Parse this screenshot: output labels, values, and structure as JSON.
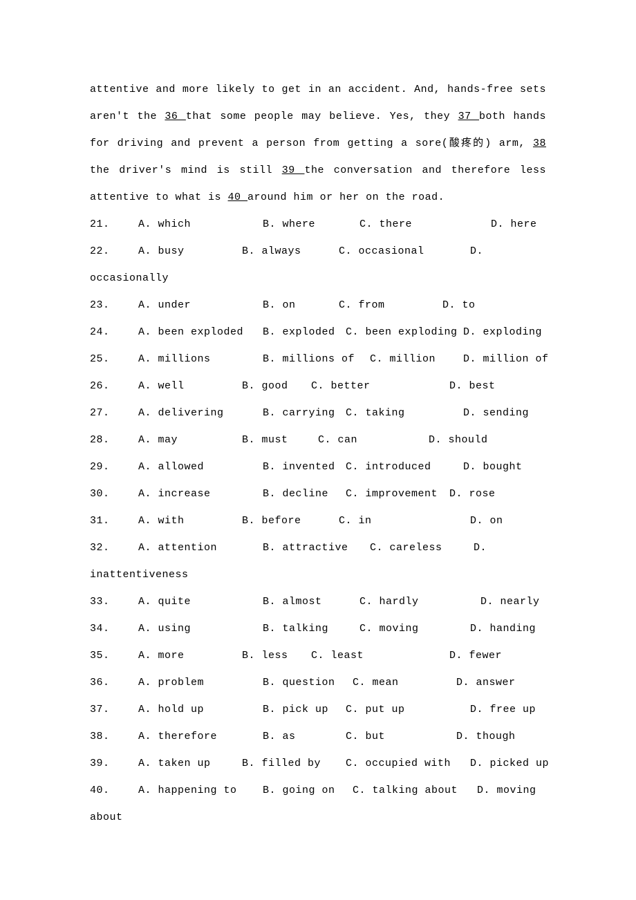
{
  "passage": {
    "pre36": "attentive and more likely to get in an accident. And, hands-free sets aren't the ",
    "blank36": "  36  ",
    "aft36": " that some people may believe. Yes, they ",
    "blank37": "  37  ",
    "aft37": " both hands for driving and prevent a person from getting a sore(酸疼的) arm, ",
    "blank38": "  38  ",
    "aft38": " the driver's mind is still ",
    "blank39": "  39  ",
    "aft39": " the conversation and therefore less attentive to what is ",
    "blank40": "  40  ",
    "aft40": " around him or her on the road."
  },
  "questions": [
    {
      "num": "21.",
      "a": "A. which",
      "b": "B. where",
      "c": "C. there",
      "d": "D. here",
      "aw": 180,
      "bw": 140,
      "cw": 190
    },
    {
      "num": "22.",
      "a": "A. busy",
      "b": "B. always",
      "c": "C. occasional",
      "d": "D.",
      "aw": 150,
      "bw": 140,
      "cw": 190,
      "cont": "occasionally"
    },
    {
      "num": "23.",
      "a": "A. under",
      "b": "B. on",
      "c": "C. from",
      "d": "D. to",
      "aw": 180,
      "bw": 110,
      "cw": 150
    },
    {
      "num": "24.",
      "a": "A. been exploded",
      "b": "B. exploded",
      "c": "C. been exploding",
      "d": "D. exploding",
      "aw": 180,
      "bw": 120,
      "cw": 170
    },
    {
      "num": "25.",
      "a": "A. millions",
      "b": "B. millions of",
      "c": "C. million",
      "d": "D. million of",
      "aw": 180,
      "bw": 155,
      "cw": 135
    },
    {
      "num": "26.",
      "a": "A. well",
      "b": "B. good",
      "c": "C. better",
      "d": "D. best",
      "aw": 150,
      "bw": 100,
      "cw": 200
    },
    {
      "num": "27.",
      "a": "A. delivering",
      "b": "B. carrying",
      "c": "C. taking",
      "d": "D. sending",
      "aw": 180,
      "bw": 120,
      "cw": 170
    },
    {
      "num": "28.",
      "a": "A. may",
      "b": "B. must",
      "c": "C. can",
      "d": "D. should",
      "aw": 150,
      "bw": 110,
      "cw": 160
    },
    {
      "num": "29.",
      "a": "A. allowed",
      "b": "B. invented",
      "c": "C. introduced",
      "d": "D. bought",
      "aw": 180,
      "bw": 120,
      "cw": 170
    },
    {
      "num": "30.",
      "a": "A. increase",
      "b": "B. decline",
      "c": "C. improvement",
      "d": "D. rose",
      "aw": 180,
      "bw": 120,
      "cw": 150
    },
    {
      "num": "31.",
      "a": "A. with",
      "b": "B. before",
      "c": "C. in",
      "d": "D. on",
      "aw": 150,
      "bw": 140,
      "cw": 190
    },
    {
      "num": "32.",
      "a": "A. attention",
      "b": "B. attractive",
      "c": "C. careless",
      "d": "D.",
      "aw": 180,
      "bw": 155,
      "cw": 150,
      "cont": "inattentiveness"
    },
    {
      "num": "33.",
      "a": "A. quite",
      "b": "B. almost",
      "c": "C. hardly",
      "d": "D. nearly",
      "aw": 180,
      "bw": 140,
      "cw": 175
    },
    {
      "num": "34.",
      "a": "A. using",
      "b": "B. talking",
      "c": "C. moving",
      "d": "D. handing",
      "aw": 180,
      "bw": 140,
      "cw": 160
    },
    {
      "num": "35.",
      "a": "A. more",
      "b": "B. less",
      "c": "C. least",
      "d": "D. fewer",
      "aw": 150,
      "bw": 100,
      "cw": 200
    },
    {
      "num": "36.",
      "a": "A. problem",
      "b": "B. question",
      "c": "C. mean",
      "d": "D. answer",
      "aw": 180,
      "bw": 130,
      "cw": 150
    },
    {
      "num": "37.",
      "a": "A. hold up",
      "b": "B. pick up",
      "c": "C. put up",
      "d": "D. free up",
      "aw": 180,
      "bw": 120,
      "cw": 180
    },
    {
      "num": "38.",
      "a": "A. therefore",
      "b": "B. as",
      "c": "C. but",
      "d": "D. though",
      "aw": 180,
      "bw": 120,
      "cw": 160
    },
    {
      "num": "39.",
      "a": "A. taken up",
      "b": "B. filled by",
      "c": "C. occupied with",
      "d": "D. picked up",
      "aw": 150,
      "bw": 150,
      "cw": 180
    },
    {
      "num": "40.",
      "a": "A. happening to",
      "b": "B. going on",
      "c": "C. talking about",
      "d": "D.    moving",
      "aw": 180,
      "bw": 130,
      "cw": 180,
      "cont": "about"
    }
  ],
  "colors": {
    "bg": "#ffffff",
    "text": "#000000"
  },
  "fontSize": 15,
  "lineHeight": 2.6
}
